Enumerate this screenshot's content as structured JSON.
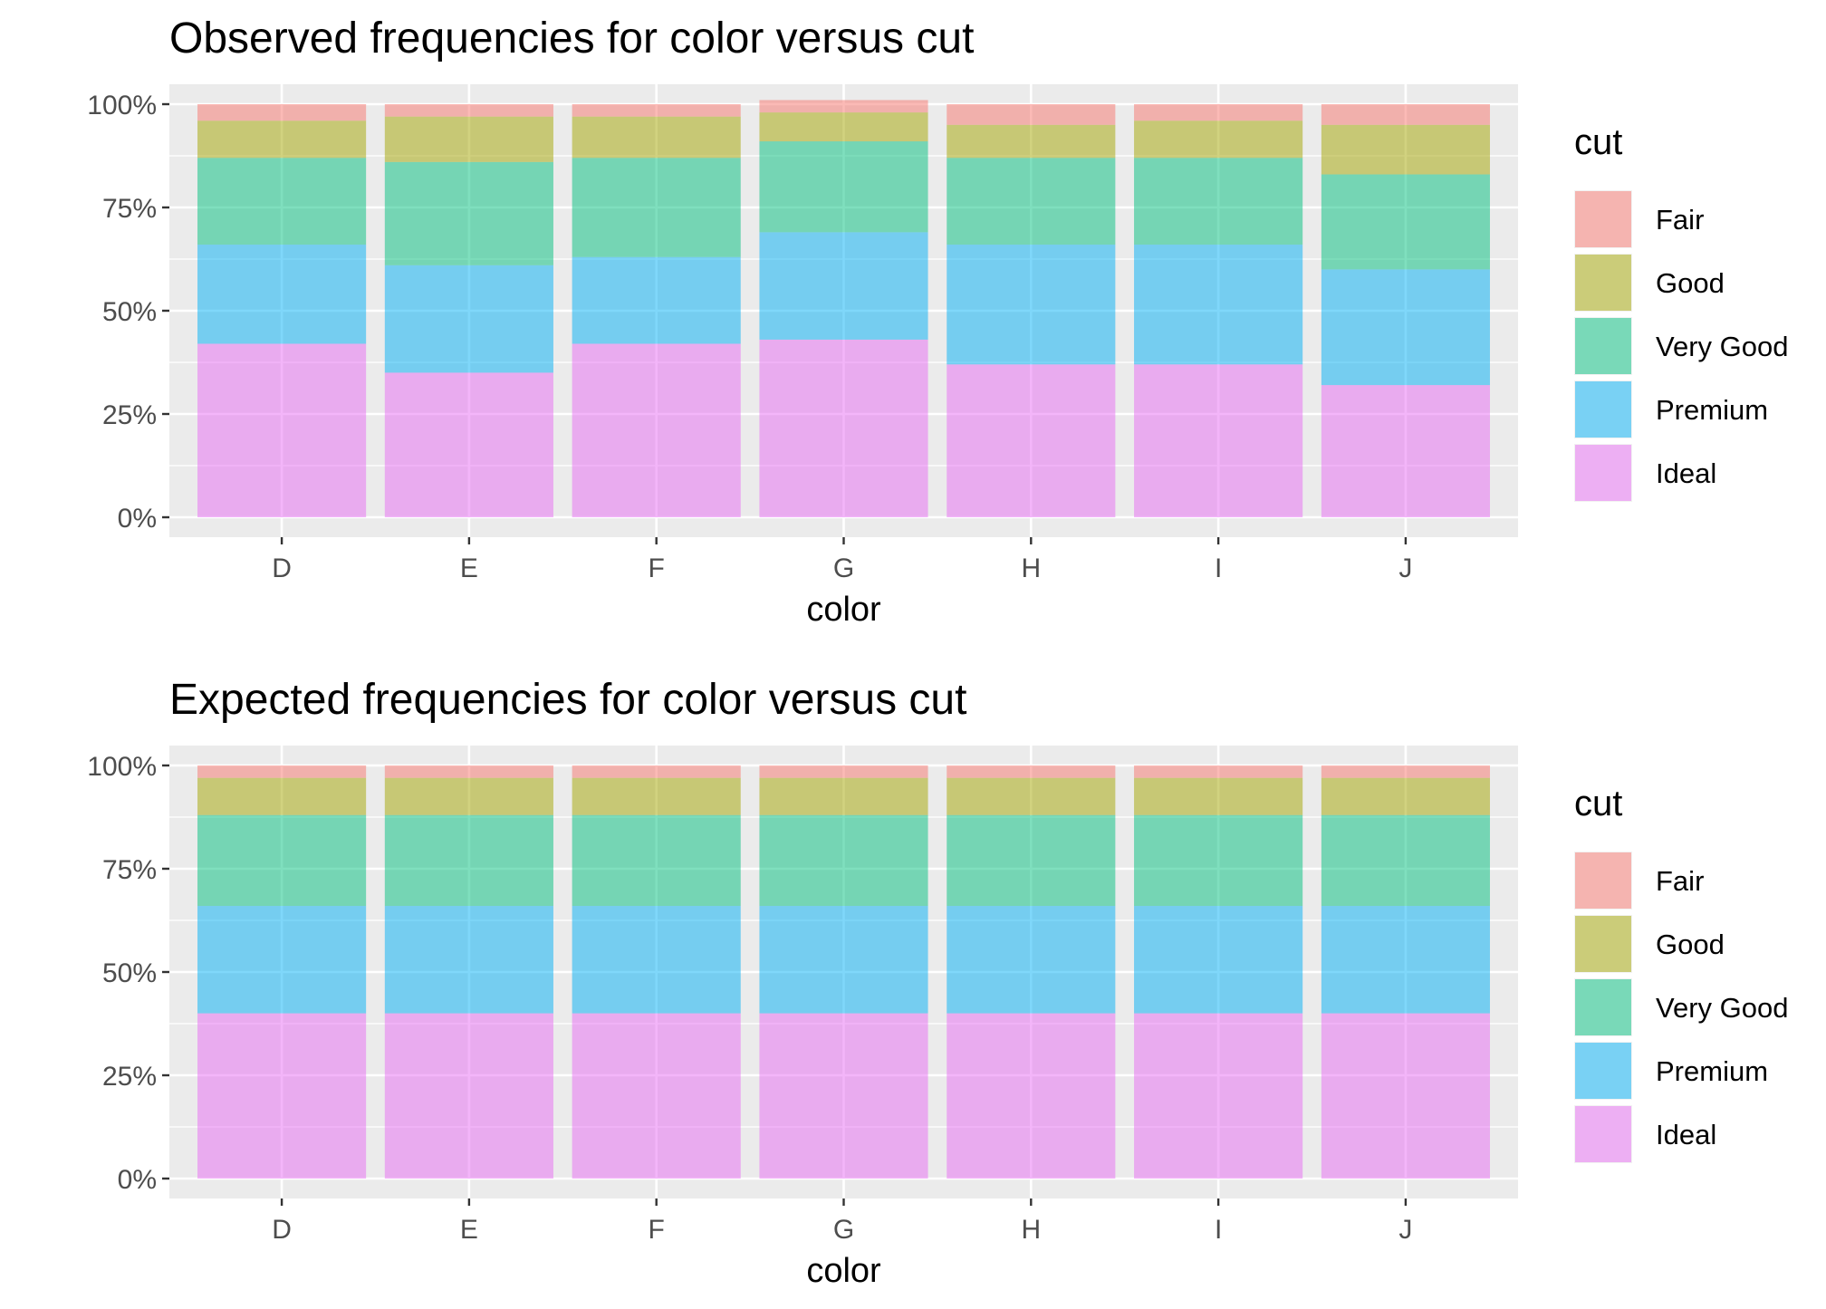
{
  "legend": {
    "title": "cut",
    "items": [
      {
        "name": "Fair",
        "color": "#F8766D"
      },
      {
        "name": "Good",
        "color": "#A3A500"
      },
      {
        "name": "Very Good",
        "color": "#00BF7D"
      },
      {
        "name": "Premium",
        "color": "#00B0F6"
      },
      {
        "name": "Ideal",
        "color": "#E76BF3"
      }
    ]
  },
  "chart_data": [
    {
      "type": "bar",
      "stacked": true,
      "title": "Observed frequencies for color versus cut",
      "xlabel": "color",
      "ylabel": "",
      "ylim": [
        0,
        1
      ],
      "yticks": [
        "0%",
        "25%",
        "50%",
        "75%",
        "100%"
      ],
      "grid": true,
      "legend_position": "right",
      "categories": [
        "D",
        "E",
        "F",
        "G",
        "H",
        "I",
        "J"
      ],
      "series": [
        {
          "name": "Ideal",
          "values": [
            0.42,
            0.35,
            0.42,
            0.43,
            0.37,
            0.37,
            0.32
          ]
        },
        {
          "name": "Premium",
          "values": [
            0.24,
            0.26,
            0.21,
            0.26,
            0.29,
            0.29,
            0.28
          ]
        },
        {
          "name": "Very Good",
          "values": [
            0.21,
            0.25,
            0.24,
            0.22,
            0.21,
            0.21,
            0.23
          ]
        },
        {
          "name": "Good",
          "values": [
            0.09,
            0.11,
            0.1,
            0.07,
            0.08,
            0.09,
            0.12
          ]
        },
        {
          "name": "Fair",
          "values": [
            0.04,
            0.03,
            0.03,
            0.03,
            0.05,
            0.04,
            0.05
          ]
        }
      ]
    },
    {
      "type": "bar",
      "stacked": true,
      "title": "Expected frequencies for color versus cut",
      "xlabel": "color",
      "ylabel": "",
      "ylim": [
        0,
        1
      ],
      "yticks": [
        "0%",
        "25%",
        "50%",
        "75%",
        "100%"
      ],
      "grid": true,
      "legend_position": "right",
      "categories": [
        "D",
        "E",
        "F",
        "G",
        "H",
        "I",
        "J"
      ],
      "series": [
        {
          "name": "Ideal",
          "values": [
            0.4,
            0.4,
            0.4,
            0.4,
            0.4,
            0.4,
            0.4
          ]
        },
        {
          "name": "Premium",
          "values": [
            0.26,
            0.26,
            0.26,
            0.26,
            0.26,
            0.26,
            0.26
          ]
        },
        {
          "name": "Very Good",
          "values": [
            0.22,
            0.22,
            0.22,
            0.22,
            0.22,
            0.22,
            0.22
          ]
        },
        {
          "name": "Good",
          "values": [
            0.09,
            0.09,
            0.09,
            0.09,
            0.09,
            0.09,
            0.09
          ]
        },
        {
          "name": "Fair",
          "values": [
            0.03,
            0.03,
            0.03,
            0.03,
            0.03,
            0.03,
            0.03
          ]
        }
      ]
    }
  ]
}
